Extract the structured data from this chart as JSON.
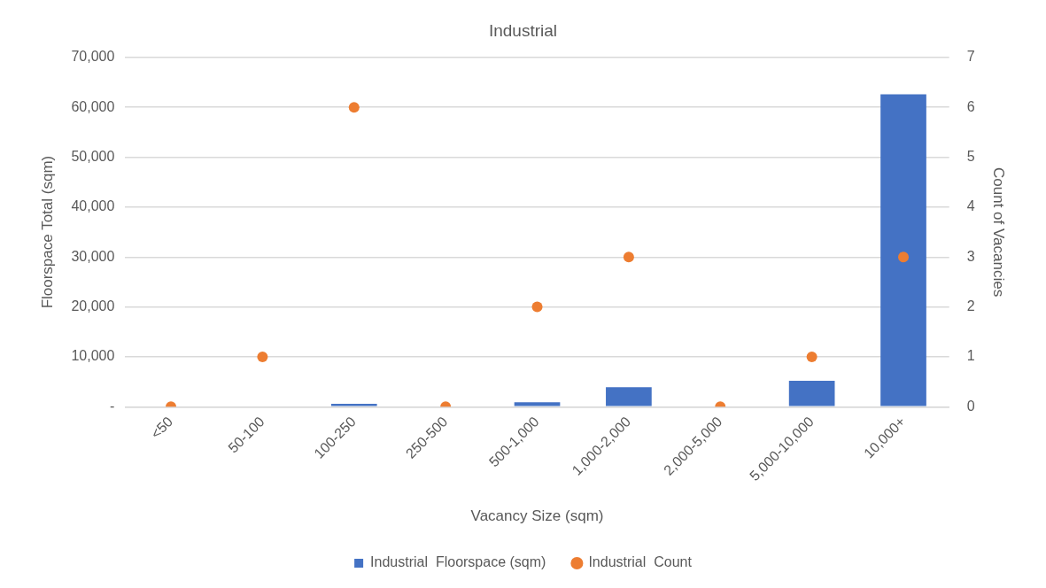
{
  "chart_data": {
    "type": "bar",
    "title": "Industrial",
    "xlabel": "Vacancy Size (sqm)",
    "ylabel": "Floorspace Total (sqm)",
    "y2label": "Count of Vacancies",
    "categories": [
      "<50",
      "50-100",
      "100-250",
      "250-500",
      "500-1,000",
      "1,000-2,000",
      "2,000-5,000",
      "5,000-10,000",
      "10,000+"
    ],
    "series": [
      {
        "name": "Industrial  Floorspace (sqm)",
        "color": "#4472c4",
        "values": [
          0,
          0,
          600,
          0,
          900,
          3900,
          0,
          5200,
          62600
        ]
      },
      {
        "name": "Industrial  Count",
        "type": "scatter",
        "axis": "y2",
        "color": "#ed7d31",
        "marker": "circle",
        "values": [
          0,
          1,
          6,
          0,
          2,
          3,
          0,
          1,
          3
        ]
      }
    ],
    "ylim": [
      0,
      70000
    ],
    "yticks": [
      {
        "value": 0,
        "label": "-"
      },
      {
        "value": 10000,
        "label": "10,000"
      },
      {
        "value": 20000,
        "label": "20,000"
      },
      {
        "value": 30000,
        "label": "30,000"
      },
      {
        "value": 40000,
        "label": "40,000"
      },
      {
        "value": 50000,
        "label": "50,000"
      },
      {
        "value": 60000,
        "label": "60,000"
      },
      {
        "value": 70000,
        "label": "70,000"
      }
    ],
    "y2lim": [
      0,
      7
    ],
    "y2ticks": [
      0,
      1,
      2,
      3,
      4,
      5,
      6,
      7
    ],
    "grid": "y",
    "legend": "bottom"
  }
}
